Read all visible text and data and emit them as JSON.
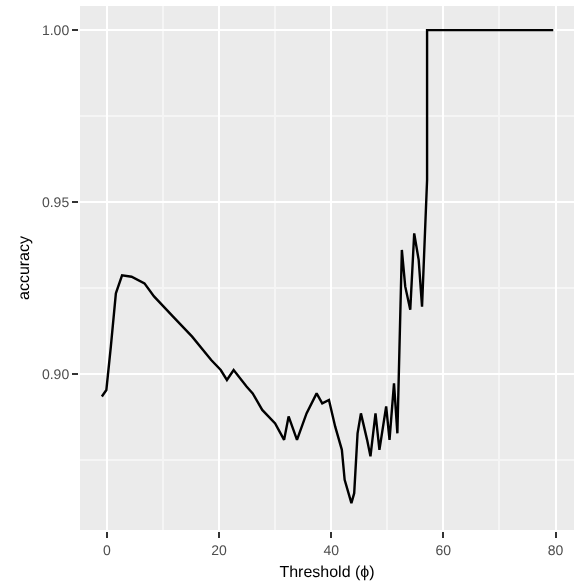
{
  "chart_data": {
    "type": "line",
    "xlabel": "Threshold (ϕ)",
    "ylabel": "accuracy",
    "x": [
      -0.9,
      -0.1,
      0.7,
      1.6,
      2.7,
      4.4,
      6.7,
      8.4,
      11.8,
      15.2,
      18.6,
      20.3,
      21.4,
      22.6,
      24.9,
      26,
      27.7,
      30,
      31.6,
      32.4,
      33.9,
      35.6,
      37.4,
      38.4,
      39.6,
      40.7,
      41.9,
      42.4,
      43.6,
      44.1,
      44.7,
      45.3,
      46.4,
      47,
      47.9,
      48.6,
      49.8,
      50.4,
      51.2,
      51.8,
      52.6,
      53.2,
      54.1,
      54.8,
      55.6,
      56.2,
      57.1,
      57.1,
      79.6
    ],
    "series": [
      {
        "color": "#000000",
        "values": [
          0.8935,
          0.8954,
          0.908,
          0.9235,
          0.9287,
          0.9283,
          0.9264,
          0.9226,
          0.9167,
          0.9109,
          0.9041,
          0.9012,
          0.8983,
          0.9012,
          0.8964,
          0.8944,
          0.8896,
          0.8857,
          0.8809,
          0.8877,
          0.8809,
          0.8886,
          0.8944,
          0.8915,
          0.8925,
          0.8848,
          0.878,
          0.8693,
          0.8625,
          0.8654,
          0.8828,
          0.8886,
          0.8809,
          0.8761,
          0.8886,
          0.878,
          0.8906,
          0.8809,
          0.8973,
          0.8828,
          0.9361,
          0.9255,
          0.9187,
          0.9409,
          0.9332,
          0.9196,
          0.9564,
          1.0,
          1.0
        ]
      }
    ],
    "xlim": [
      -4.8,
      83.3
    ],
    "ylim": [
      0.8547,
      1.007
    ],
    "xticks": [
      0,
      20,
      40,
      60,
      80
    ],
    "yticks": [
      {
        "value": 0.9,
        "label": "0.90"
      },
      {
        "value": 0.95,
        "label": "0.95"
      },
      {
        "value": 1.0,
        "label": "1.00"
      }
    ],
    "grid": true,
    "marker": "none",
    "line_style": "solid"
  }
}
